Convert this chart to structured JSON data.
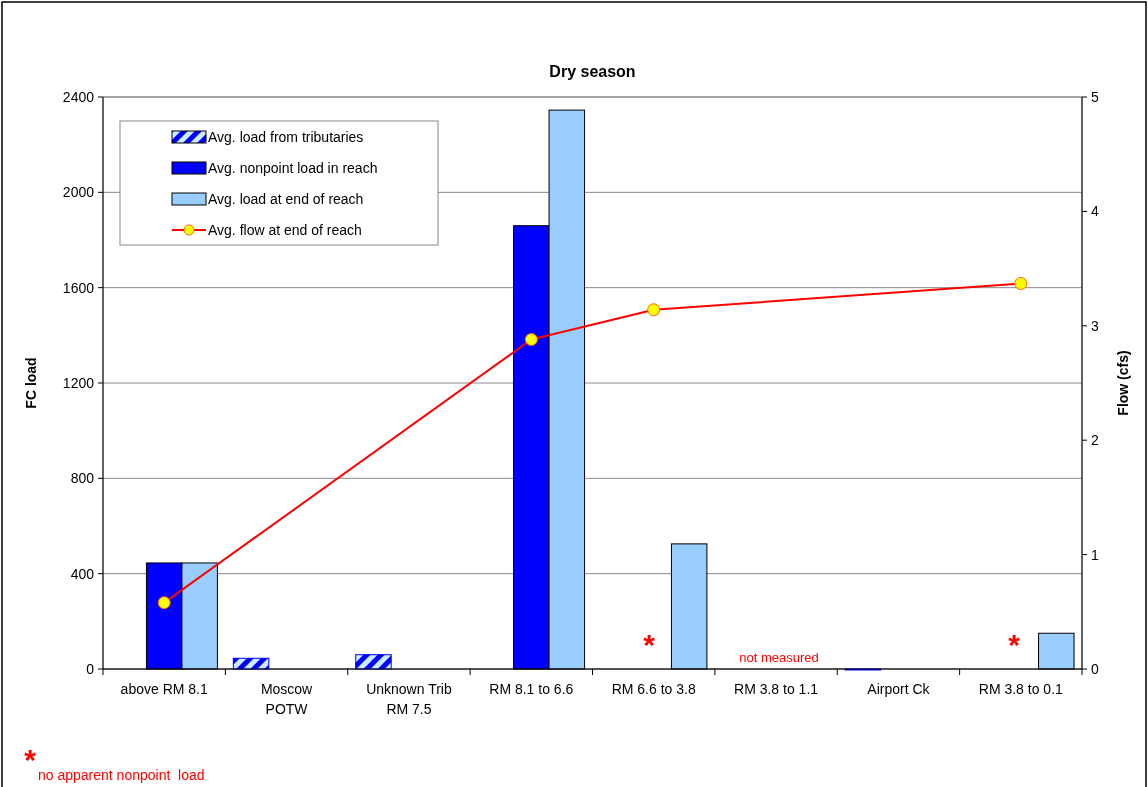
{
  "chart_data": {
    "type": "bar",
    "title": "Dry season",
    "ylabel": "FC load",
    "y2label": "Flow (cfs)",
    "categories": [
      "above RM 8.1",
      "Moscow\nPOTW",
      "Unknown Trib\nRM 7.5",
      "RM 8.1 to 6.6",
      "RM 6.6 to 3.8",
      "RM 3.8 to 1.1",
      "Airport Ck",
      "RM 3.8 to 0.1"
    ],
    "series": [
      {
        "name": "Avg. load from tributaries",
        "color": "#0000ff",
        "values": [
          null,
          45,
          60,
          null,
          null,
          null,
          0,
          null
        ]
      },
      {
        "name": "Avg. nonpoint load in reach",
        "color": "#0000ff",
        "values": [
          445,
          null,
          null,
          1860,
          null,
          null,
          null,
          null
        ]
      },
      {
        "name": "Avg. load at end of reach",
        "color": "#99ccff",
        "values": [
          445,
          null,
          null,
          2345,
          525,
          null,
          null,
          150
        ]
      },
      {
        "name": "Avg. flow at end of reach",
        "type": "line",
        "axis": "y2",
        "color": "#ff0000",
        "values": [
          0.58,
          null,
          null,
          2.88,
          3.14,
          null,
          null,
          3.37
        ]
      }
    ],
    "ylim": [
      0,
      2400
    ],
    "yticks": [
      0,
      400,
      800,
      1200,
      1600,
      2000,
      2400
    ],
    "y2lim": [
      0,
      5
    ],
    "y2ticks": [
      0,
      1,
      2,
      3,
      4,
      5
    ],
    "grid": "y",
    "legend": "top left",
    "marker": "circle",
    "annotations": [
      "*",
      "not measured",
      "*",
      "*",
      "no apparent nonpoint  load"
    ]
  }
}
